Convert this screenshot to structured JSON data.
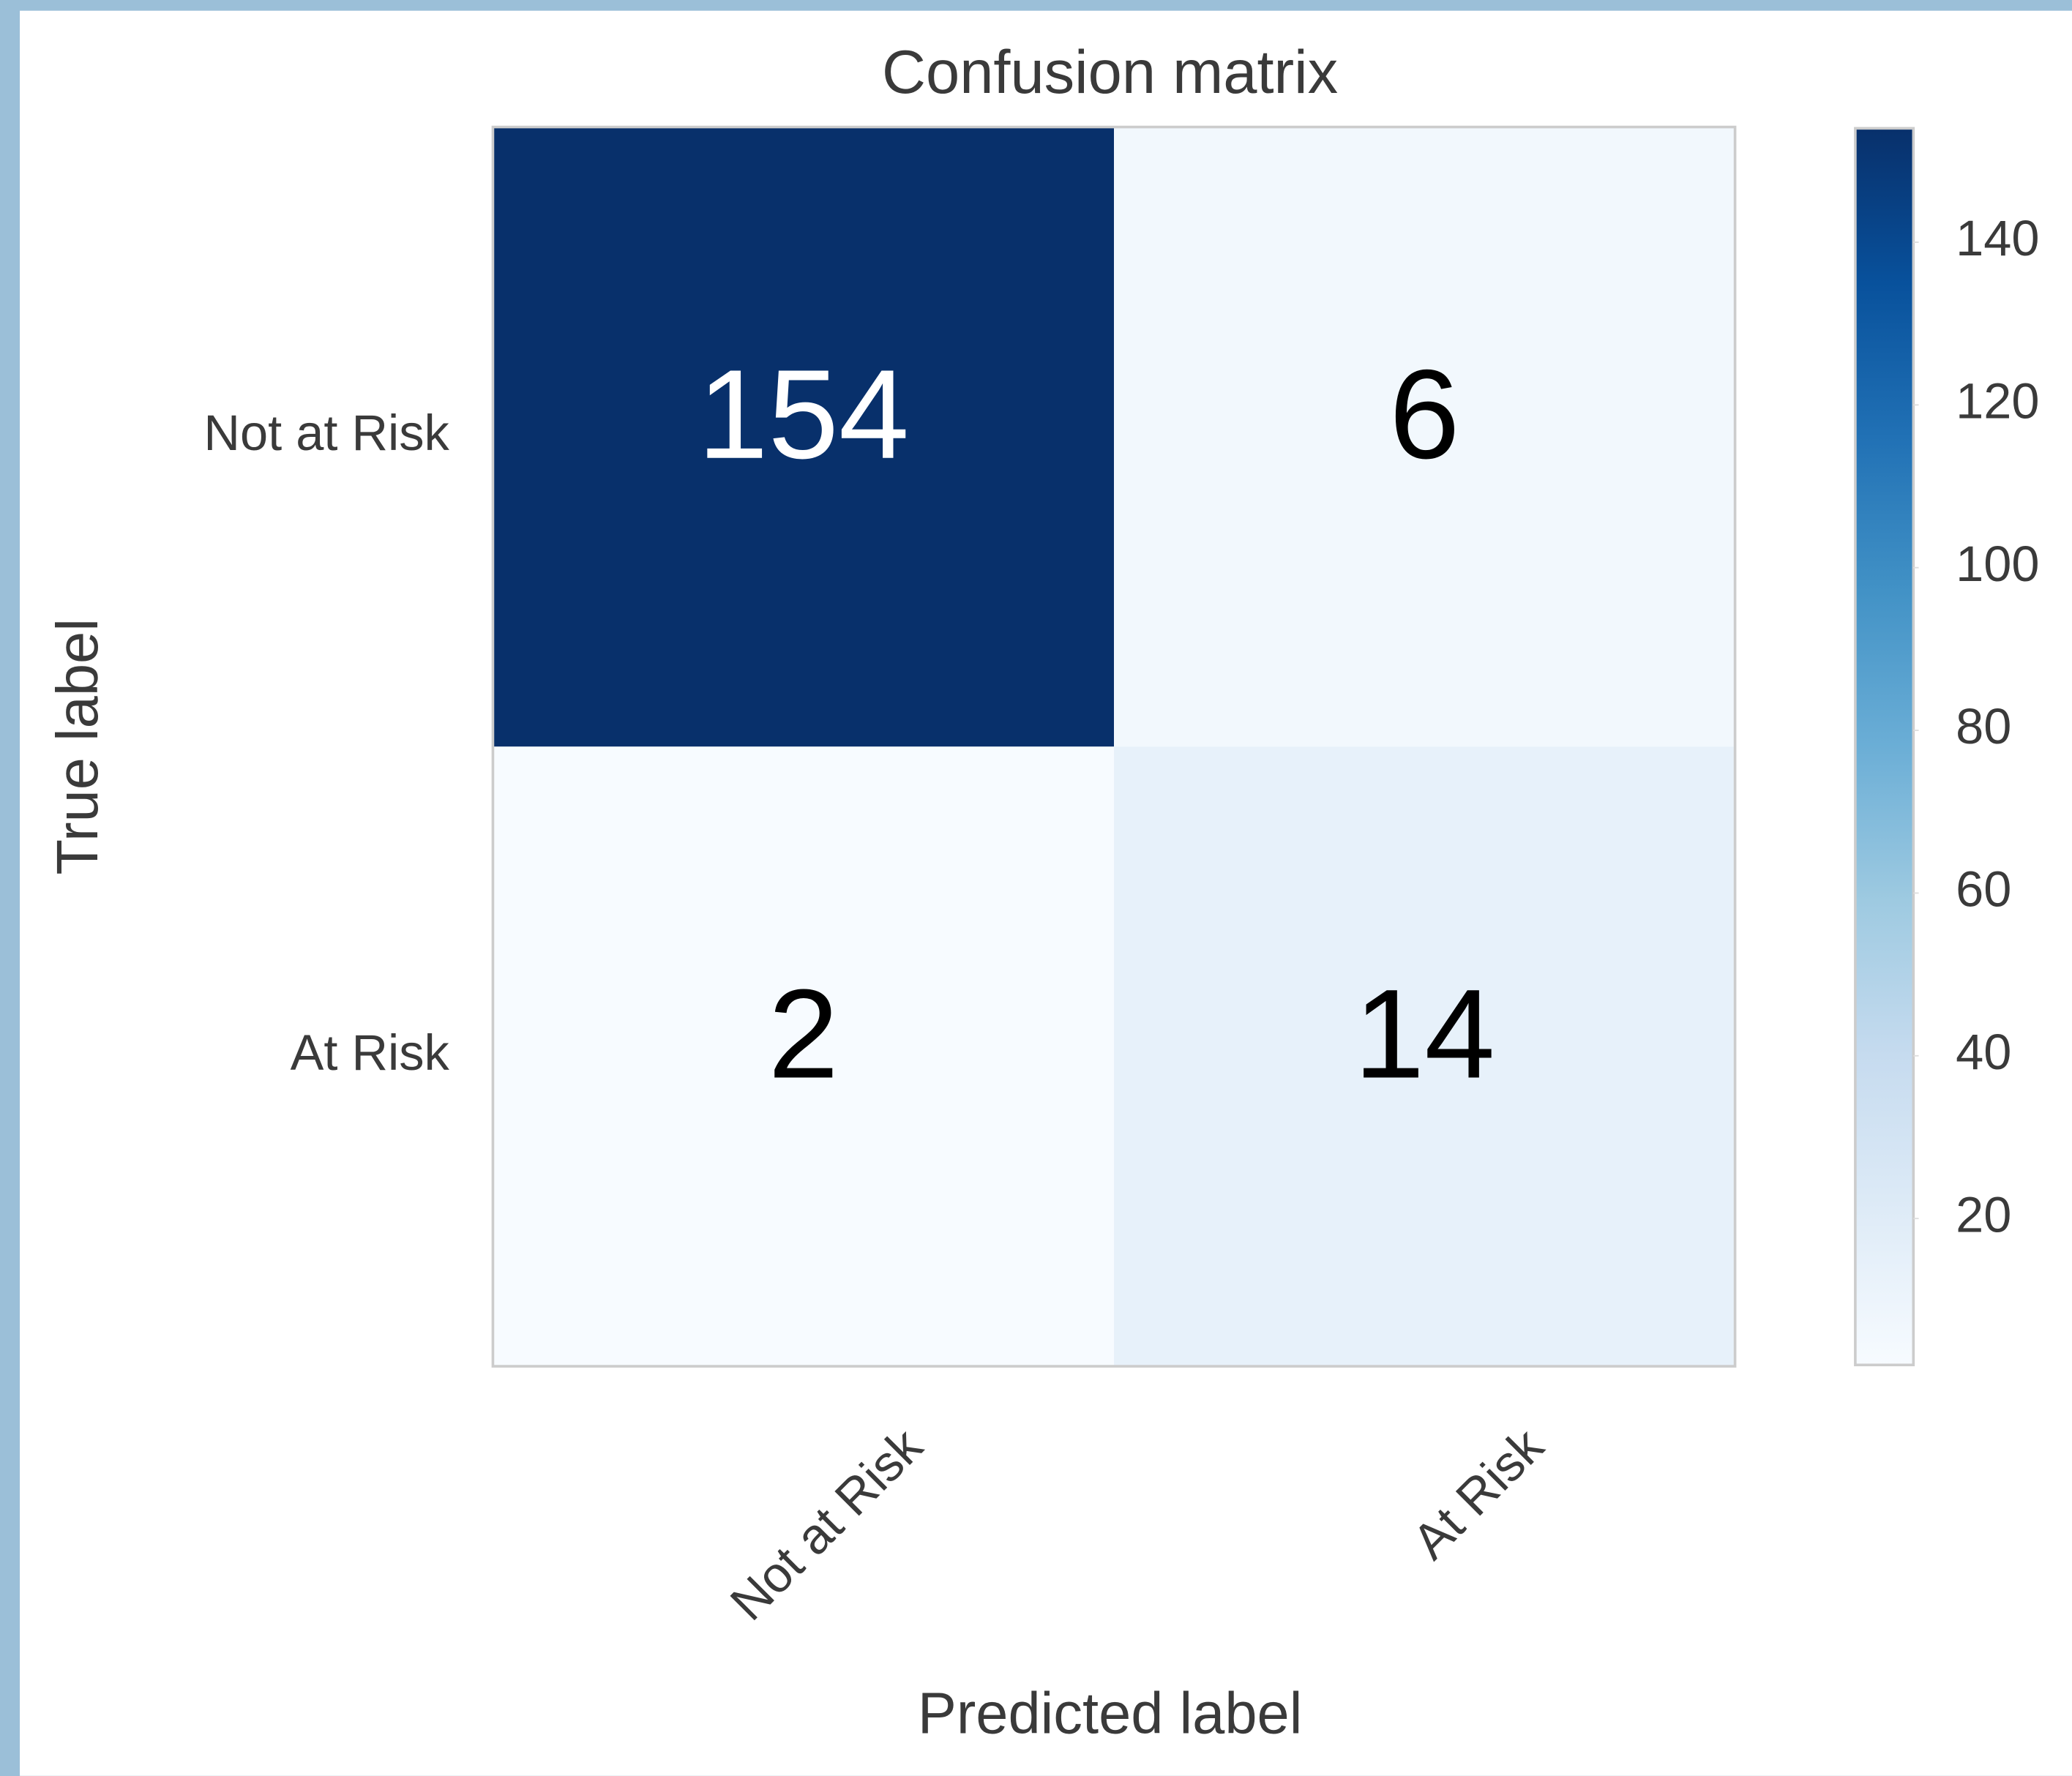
{
  "chart_data": {
    "type": "heatmap",
    "title": "Confusion matrix",
    "xlabel": "Predicted label",
    "ylabel": "True label",
    "x_categories": [
      "Not at Risk",
      "At Risk"
    ],
    "y_categories": [
      "Not at Risk",
      "At Risk"
    ],
    "values": [
      [
        154,
        6
      ],
      [
        2,
        14
      ]
    ],
    "colormap": "Blues",
    "clim": [
      2,
      154
    ],
    "colorbar_ticks": [
      20,
      40,
      60,
      80,
      100,
      120,
      140
    ]
  }
}
